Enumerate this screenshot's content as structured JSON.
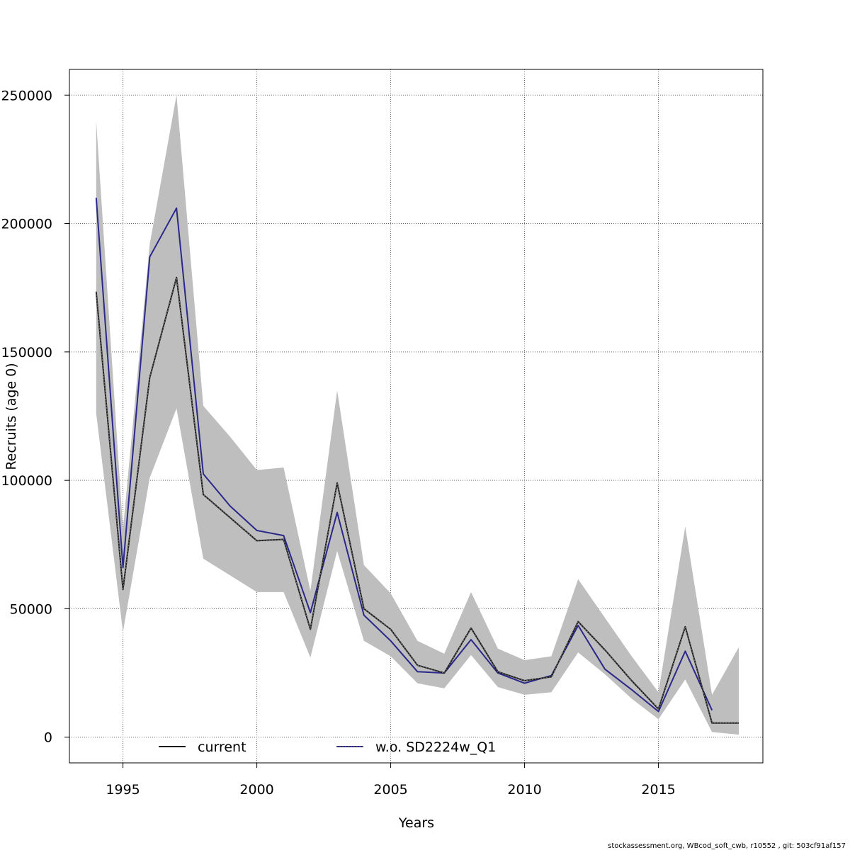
{
  "chart_data": {
    "type": "line",
    "title": "",
    "xlabel": "Years",
    "ylabel": "Recruits (age 0)",
    "xlim": [
      1993.0,
      2018.9
    ],
    "ylim": [
      -10000,
      260000
    ],
    "x_ticks": [
      1995,
      2000,
      2005,
      2010,
      2015
    ],
    "y_ticks": [
      0,
      50000,
      100000,
      150000,
      200000,
      250000
    ],
    "grid": true,
    "legend_placement": "bottom",
    "confidence_band": {
      "color": "#bebebe",
      "x": [
        1994,
        1995,
        1996,
        1997,
        1998,
        1999,
        2000,
        2001,
        2002,
        2003,
        2004,
        2005,
        2006,
        2007,
        2008,
        2009,
        2010,
        2011,
        2012,
        2013,
        2014,
        2015,
        2016,
        2017,
        2018
      ],
      "upper": [
        240000,
        81000,
        192000,
        250000,
        129000,
        117000,
        104000,
        105000,
        57000,
        135000,
        67000,
        56000,
        37500,
        32500,
        56500,
        34500,
        30000,
        31500,
        61500,
        46500,
        31500,
        17500,
        82000,
        16500,
        35000
      ],
      "lower": [
        126000,
        41000,
        101000,
        128000,
        69500,
        63000,
        56500,
        56500,
        31000,
        72500,
        37500,
        31500,
        21000,
        19000,
        32000,
        19500,
        16500,
        17500,
        33000,
        24500,
        15000,
        7000,
        22500,
        2000,
        1000
      ]
    },
    "series": [
      {
        "name": "current",
        "color": "#1a1a1a",
        "style": "solid-with-dotted-overlay",
        "x": [
          1994,
          1995,
          1996,
          1997,
          1998,
          1999,
          2000,
          2001,
          2002,
          2003,
          2004,
          2005,
          2006,
          2007,
          2008,
          2009,
          2010,
          2011,
          2012,
          2013,
          2014,
          2015,
          2016,
          2017,
          2018
        ],
        "values": [
          173500,
          57500,
          140000,
          179000,
          94500,
          85500,
          76500,
          77000,
          42000,
          99000,
          50000,
          42000,
          28000,
          25000,
          42500,
          25500,
          22000,
          23500,
          45000,
          34000,
          22000,
          11000,
          43000,
          5500,
          5500
        ]
      },
      {
        "name": "w.o. SD2224w_Q1",
        "color": "#2a2888",
        "style": "solid",
        "x": [
          1994,
          1995,
          1996,
          1997,
          1998,
          1999,
          2000,
          2001,
          2002,
          2003,
          2004,
          2005,
          2006,
          2007,
          2008,
          2009,
          2010,
          2011,
          2012,
          2013,
          2014,
          2015,
          2016,
          2017
        ],
        "values": [
          210000,
          66000,
          187000,
          206000,
          102500,
          90000,
          80500,
          78500,
          48500,
          87500,
          47500,
          37500,
          25500,
          25000,
          38000,
          25000,
          21000,
          24000,
          43500,
          26500,
          18500,
          10000,
          33500,
          10500
        ]
      }
    ]
  },
  "footer_text": "stockassessment.org, WBcod_soft_cwb, r10552 , git: 503cf91af157"
}
